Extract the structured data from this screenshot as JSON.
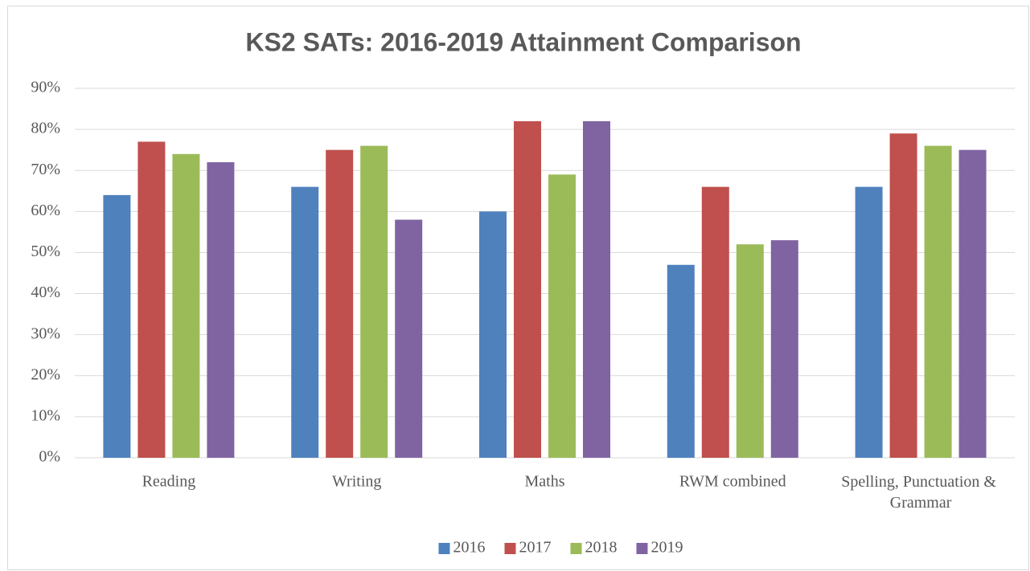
{
  "chart_data": {
    "type": "bar",
    "title": "KS2 SATs: 2016-2019 Attainment Comparison",
    "categories": [
      "Reading",
      "Writing",
      "Maths",
      "RWM combined",
      "Spelling, Punctuation & Grammar"
    ],
    "series": [
      {
        "name": "2016",
        "color": "#4f81bd",
        "values": [
          64,
          66,
          60,
          47,
          66
        ]
      },
      {
        "name": "2017",
        "color": "#c0504d",
        "values": [
          77,
          75,
          82,
          66,
          79
        ]
      },
      {
        "name": "2018",
        "color": "#9bbb59",
        "values": [
          74,
          76,
          69,
          52,
          76
        ]
      },
      {
        "name": "2019",
        "color": "#8064a2",
        "values": [
          72,
          58,
          82,
          53,
          75
        ]
      }
    ],
    "ylim": [
      0,
      90
    ],
    "yticks": [
      {
        "value": 0,
        "label": "0%"
      },
      {
        "value": 10,
        "label": "10%"
      },
      {
        "value": 20,
        "label": "20%"
      },
      {
        "value": 30,
        "label": "30%"
      },
      {
        "value": 40,
        "label": "40%"
      },
      {
        "value": 50,
        "label": "50%"
      },
      {
        "value": 60,
        "label": "60%"
      },
      {
        "value": 70,
        "label": "70%"
      },
      {
        "value": 80,
        "label": "80%"
      },
      {
        "value": 90,
        "label": "90%"
      }
    ],
    "grid": true,
    "legend": "bottom"
  }
}
